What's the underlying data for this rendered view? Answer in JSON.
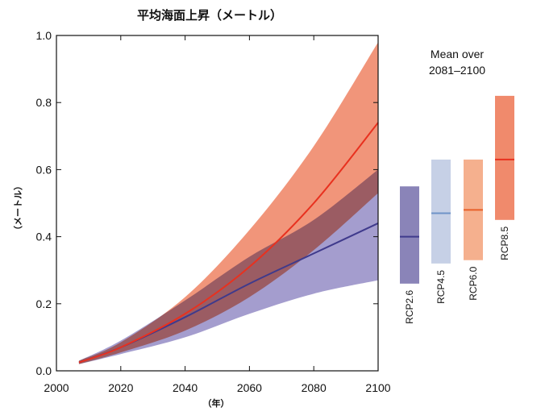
{
  "chart_data": {
    "type": "area",
    "title": "平均海面上昇（メートル）",
    "xlabel": "（年）",
    "ylabel": "（メートル）",
    "xlim": [
      2000,
      2100
    ],
    "ylim": [
      0.0,
      1.0
    ],
    "x_ticks": [
      "2000",
      "2020",
      "2040",
      "2060",
      "2080",
      "2100"
    ],
    "y_ticks": [
      "0.0",
      "0.2",
      "0.4",
      "0.6",
      "0.8",
      "1.0"
    ],
    "grid": false,
    "series": [
      {
        "key": "rcp85",
        "color": "#e8311f",
        "band_color": "#f08a6c",
        "x": [
          2007,
          2020,
          2040,
          2060,
          2080,
          2100
        ],
        "mean": [
          0.025,
          0.07,
          0.17,
          0.31,
          0.5,
          0.74
        ],
        "lower": [
          0.02,
          0.055,
          0.12,
          0.22,
          0.36,
          0.53
        ],
        "upper": [
          0.03,
          0.085,
          0.22,
          0.42,
          0.67,
          0.98
        ]
      },
      {
        "key": "rcp26",
        "color": "#3f3a8c",
        "band_color": "#9a92c9",
        "x": [
          2007,
          2020,
          2040,
          2060,
          2080,
          2100
        ],
        "mean": [
          0.025,
          0.07,
          0.16,
          0.26,
          0.35,
          0.44
        ],
        "lower": [
          0.02,
          0.05,
          0.1,
          0.17,
          0.23,
          0.27
        ],
        "upper": [
          0.03,
          0.09,
          0.21,
          0.34,
          0.45,
          0.6
        ]
      }
    ],
    "side_panel": {
      "title_line1": "Mean over",
      "title_line2": "2081–2100",
      "bars": [
        {
          "label": "RCP2.6",
          "low": 0.26,
          "high": 0.55,
          "mean": 0.4,
          "fill": "#8a84b8",
          "line": "#3f3a8c"
        },
        {
          "label": "RCP4.5",
          "low": 0.32,
          "high": 0.63,
          "mean": 0.47,
          "fill": "#c6d0e6",
          "line": "#6f93c8"
        },
        {
          "label": "RCP6.0",
          "low": 0.33,
          "high": 0.63,
          "mean": 0.48,
          "fill": "#f5b08e",
          "line": "#e8602a"
        },
        {
          "label": "RCP8.5",
          "low": 0.45,
          "high": 0.82,
          "mean": 0.63,
          "fill": "#f08a6c",
          "line": "#e8311f"
        }
      ]
    }
  }
}
